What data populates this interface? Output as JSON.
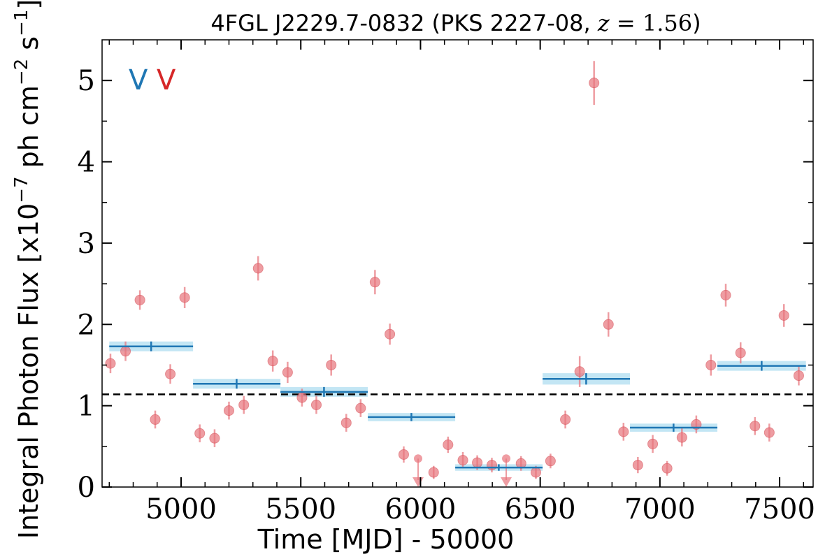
{
  "chart_data": {
    "type": "scatter",
    "title": "4FGL J2229.7-0832 (PKS 2227-08, z = 1.56)",
    "xlabel": "Time [MJD] - 50000",
    "ylabel": "Integral Photon Flux [x10^-7 ph cm^-2 s^-1]",
    "xlim": [
      4670,
      7640
    ],
    "ylim": [
      0,
      5.5
    ],
    "xticks": [
      5000,
      5500,
      6000,
      6500,
      7000,
      7500
    ],
    "yticks": [
      0,
      1,
      2,
      3,
      4,
      5
    ],
    "grid": false,
    "legend_marks": [
      {
        "label": "V",
        "color": "#1f77b4"
      },
      {
        "label": "V",
        "color": "#d62728"
      }
    ],
    "mean_flux": 1.14,
    "series": [
      {
        "name": "",
        "color": "#e8747c",
        "points": [
          {
            "x": 4705,
            "y": 1.52,
            "err": 0.12
          },
          {
            "x": 4768,
            "y": 1.67,
            "err": 0.12
          },
          {
            "x": 4828,
            "y": 2.3,
            "err": 0.12
          },
          {
            "x": 4892,
            "y": 0.83,
            "err": 0.11
          },
          {
            "x": 4955,
            "y": 1.39,
            "err": 0.12
          },
          {
            "x": 5015,
            "y": 2.33,
            "err": 0.13
          },
          {
            "x": 5078,
            "y": 0.66,
            "err": 0.11
          },
          {
            "x": 5140,
            "y": 0.6,
            "err": 0.11
          },
          {
            "x": 5200,
            "y": 0.94,
            "err": 0.11
          },
          {
            "x": 5262,
            "y": 1.01,
            "err": 0.11
          },
          {
            "x": 5322,
            "y": 2.69,
            "err": 0.15
          },
          {
            "x": 5383,
            "y": 1.55,
            "err": 0.13
          },
          {
            "x": 5445,
            "y": 1.41,
            "err": 0.13
          },
          {
            "x": 5505,
            "y": 1.1,
            "err": 0.11
          },
          {
            "x": 5565,
            "y": 1.01,
            "err": 0.11
          },
          {
            "x": 5627,
            "y": 1.5,
            "err": 0.13
          },
          {
            "x": 5690,
            "y": 0.79,
            "err": 0.11
          },
          {
            "x": 5750,
            "y": 0.97,
            "err": 0.11
          },
          {
            "x": 5810,
            "y": 2.52,
            "err": 0.15
          },
          {
            "x": 5872,
            "y": 1.88,
            "err": 0.13
          },
          {
            "x": 5930,
            "y": 0.4,
            "err": 0.1
          },
          {
            "x": 5990,
            "y": 0.35,
            "upper_limit": true
          },
          {
            "x": 6055,
            "y": 0.18,
            "err": 0.08
          },
          {
            "x": 6115,
            "y": 0.52,
            "err": 0.1
          },
          {
            "x": 6177,
            "y": 0.33,
            "err": 0.1
          },
          {
            "x": 6237,
            "y": 0.3,
            "err": 0.09
          },
          {
            "x": 6298,
            "y": 0.27,
            "err": 0.09
          },
          {
            "x": 6358,
            "y": 0.35,
            "upper_limit": true
          },
          {
            "x": 6420,
            "y": 0.29,
            "err": 0.09
          },
          {
            "x": 6482,
            "y": 0.18,
            "err": 0.08
          },
          {
            "x": 6543,
            "y": 0.32,
            "err": 0.09
          },
          {
            "x": 6605,
            "y": 0.83,
            "err": 0.11
          },
          {
            "x": 6665,
            "y": 1.42,
            "err": 0.19
          },
          {
            "x": 6725,
            "y": 4.97,
            "err": 0.27
          },
          {
            "x": 6785,
            "y": 2.0,
            "err": 0.15
          },
          {
            "x": 6848,
            "y": 0.68,
            "err": 0.11
          },
          {
            "x": 6908,
            "y": 0.27,
            "err": 0.1
          },
          {
            "x": 6970,
            "y": 0.53,
            "err": 0.11
          },
          {
            "x": 7030,
            "y": 0.23,
            "err": 0.09
          },
          {
            "x": 7092,
            "y": 0.61,
            "err": 0.11
          },
          {
            "x": 7152,
            "y": 0.77,
            "err": 0.11
          },
          {
            "x": 7213,
            "y": 1.5,
            "err": 0.13
          },
          {
            "x": 7275,
            "y": 2.36,
            "err": 0.14
          },
          {
            "x": 7337,
            "y": 1.65,
            "err": 0.13
          },
          {
            "x": 7397,
            "y": 0.75,
            "err": 0.11
          },
          {
            "x": 7457,
            "y": 0.67,
            "err": 0.11
          },
          {
            "x": 7518,
            "y": 2.11,
            "err": 0.14
          },
          {
            "x": 7580,
            "y": 1.37,
            "err": 0.12
          }
        ]
      },
      {
        "name": "",
        "color": "#1f77b4",
        "band_color": "#aadcf0",
        "bins": [
          {
            "x0": 4700,
            "x1": 5050,
            "xc": 4875,
            "y": 1.73,
            "err": 0.06
          },
          {
            "x0": 5050,
            "x1": 5415,
            "xc": 5232,
            "y": 1.27,
            "err": 0.06
          },
          {
            "x0": 5415,
            "x1": 5780,
            "xc": 5597,
            "y": 1.17,
            "err": 0.06
          },
          {
            "x0": 5780,
            "x1": 6145,
            "xc": 5962,
            "y": 0.86,
            "err": 0.05
          },
          {
            "x0": 6145,
            "x1": 6510,
            "xc": 6327,
            "y": 0.24,
            "err": 0.04
          },
          {
            "x0": 6510,
            "x1": 6875,
            "xc": 6692,
            "y": 1.33,
            "err": 0.07
          },
          {
            "x0": 6875,
            "x1": 7240,
            "xc": 7057,
            "y": 0.73,
            "err": 0.05
          },
          {
            "x0": 7240,
            "x1": 7610,
            "xc": 7425,
            "y": 1.49,
            "err": 0.06
          }
        ]
      }
    ]
  }
}
